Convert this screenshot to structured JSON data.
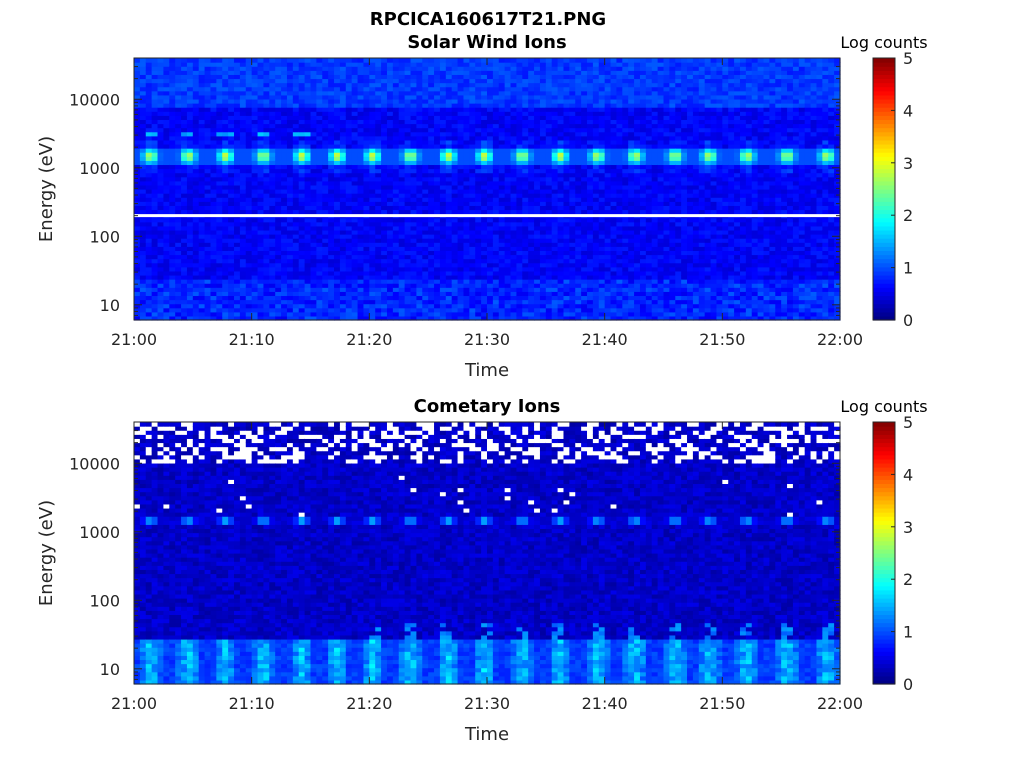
{
  "figure_title": "RPCICA160617T21.PNG",
  "chart_data": [
    {
      "type": "heatmap",
      "title": "Solar Wind Ions",
      "xlabel": "Time",
      "ylabel": "Energy (eV)",
      "x_ticks": [
        "21:00",
        "21:10",
        "21:20",
        "21:30",
        "21:40",
        "21:50",
        "22:00"
      ],
      "y_ticks": [
        "10",
        "100",
        "1000",
        "10000"
      ],
      "y_tick_values": [
        10,
        100,
        1000,
        10000
      ],
      "yscale": "log",
      "xlim": [
        "21:00",
        "22:00"
      ],
      "ylim": [
        6,
        40000
      ],
      "colorbar_label": "Log counts",
      "colorbar_ticks": [
        "0",
        "1",
        "2",
        "3",
        "4",
        "5"
      ],
      "clim": [
        0,
        5
      ],
      "colormap": "jet",
      "features": {
        "peak_energy_eV": 1500,
        "peak_level": 2.6,
        "background_level": 0.6,
        "high_energy_level": 0.9,
        "low_energy_level": 0.9,
        "gap_energy_eV": 200,
        "peak_minutes": [
          1.4,
          4.6,
          7.8,
          11.0,
          14.3,
          17.3,
          20.3,
          23.5,
          26.7,
          29.8,
          33.0,
          36.2,
          39.4,
          42.6,
          46.0,
          48.9,
          52.1,
          55.5,
          58.9
        ]
      }
    },
    {
      "type": "heatmap",
      "title": "Cometary Ions",
      "xlabel": "Time",
      "ylabel": "Energy (eV)",
      "x_ticks": [
        "21:00",
        "21:10",
        "21:20",
        "21:30",
        "21:40",
        "21:50",
        "22:00"
      ],
      "y_ticks": [
        "10",
        "100",
        "1000",
        "10000"
      ],
      "y_tick_values": [
        10,
        100,
        1000,
        10000
      ],
      "yscale": "log",
      "xlim": [
        "21:00",
        "22:00"
      ],
      "ylim": [
        6,
        40000
      ],
      "colorbar_label": "Log counts",
      "colorbar_ticks": [
        "0",
        "1",
        "2",
        "3",
        "4",
        "5"
      ],
      "clim": [
        0,
        5
      ],
      "colormap": "jet",
      "features": {
        "peak_energy_eV": 1500,
        "peak_level": 1.2,
        "low_energy_peak_eV": 18,
        "low_energy_level": 1.9,
        "background_level": 0.35,
        "peak_minutes": [
          1.4,
          4.6,
          7.8,
          11.0,
          14.3,
          17.3,
          20.3,
          23.5,
          26.7,
          29.8,
          33.0,
          36.2,
          39.4,
          42.6,
          46.0,
          48.9,
          52.1,
          55.5,
          58.9
        ]
      }
    }
  ]
}
